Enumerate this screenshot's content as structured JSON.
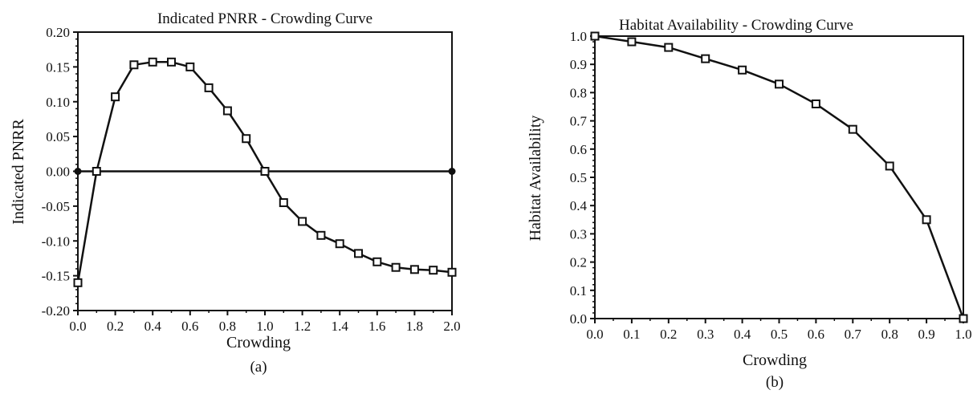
{
  "chart_data": [
    {
      "type": "line",
      "title": "Indicated PNRR - Crowding Curve",
      "xlabel": "Crowding",
      "ylabel": "Indicated PNRR",
      "caption": "(a)",
      "xlim": [
        0.0,
        2.0
      ],
      "ylim": [
        -0.2,
        0.2
      ],
      "x_ticks": [
        "0.0",
        "0.2",
        "0.4",
        "0.6",
        "0.8",
        "1.0",
        "1.2",
        "1.4",
        "1.6",
        "1.8",
        "2.0"
      ],
      "y_ticks": [
        "0.20",
        "0.15",
        "0.10",
        "0.05",
        "0.00",
        "-0.05",
        "-0.10",
        "-0.15",
        "-0.20"
      ],
      "series": [
        {
          "marker": "square",
          "x": [
            0.0,
            0.1,
            0.2,
            0.3,
            0.4,
            0.5,
            0.6,
            0.7,
            0.8,
            0.9,
            1.0,
            1.1,
            1.2,
            1.3,
            1.4,
            1.5,
            1.6,
            1.7,
            1.8,
            1.9,
            2.0
          ],
          "values": [
            -0.16,
            0.0,
            0.107,
            0.153,
            0.157,
            0.157,
            0.15,
            0.12,
            0.087,
            0.047,
            0.0,
            -0.045,
            -0.072,
            -0.092,
            -0.104,
            -0.118,
            -0.13,
            -0.138,
            -0.141,
            -0.142,
            -0.145
          ]
        },
        {
          "marker": "dot",
          "x": [
            0.0,
            2.0
          ],
          "values": [
            0.0,
            0.0
          ]
        }
      ]
    },
    {
      "type": "line",
      "title": "Habitat Availability - Crowding Curve",
      "xlabel": "Crowding",
      "ylabel": "Habitat Availability",
      "caption": "(b)",
      "xlim": [
        0.0,
        1.0
      ],
      "ylim": [
        0.0,
        1.0
      ],
      "x_ticks": [
        "0.0",
        "0.1",
        "0.2",
        "0.3",
        "0.4",
        "0.5",
        "0.6",
        "0.7",
        "0.8",
        "0.9",
        "1.0"
      ],
      "y_ticks": [
        "1.0",
        "0.9",
        "0.8",
        "0.7",
        "0.6",
        "0.5",
        "0.4",
        "0.3",
        "0.2",
        "0.1",
        "0.0"
      ],
      "series": [
        {
          "marker": "square",
          "x": [
            0.0,
            0.1,
            0.2,
            0.3,
            0.4,
            0.5,
            0.6,
            0.7,
            0.8,
            0.9,
            1.0
          ],
          "values": [
            1.0,
            0.98,
            0.96,
            0.92,
            0.88,
            0.83,
            0.76,
            0.67,
            0.54,
            0.35,
            0.0
          ]
        }
      ]
    }
  ]
}
